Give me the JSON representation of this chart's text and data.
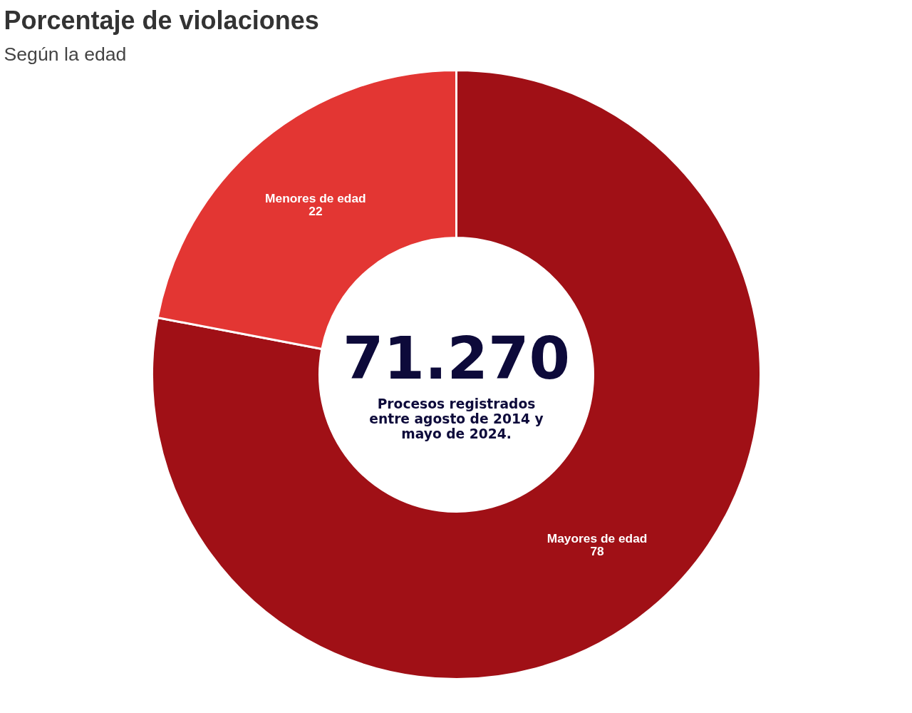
{
  "chart_data": {
    "type": "donut",
    "title": "Porcentaje de violaciones",
    "subtitle": "Según la edad",
    "categories": [
      "Mayores de edad",
      "Menores de edad"
    ],
    "values": [
      78,
      22
    ],
    "colors": [
      "#a01016",
      "#e33633"
    ],
    "data_labels": true,
    "annotations": [
      "71.270",
      "Procesos registrados\nentre agosto de 2014 y\nmayo de 2024."
    ]
  }
}
